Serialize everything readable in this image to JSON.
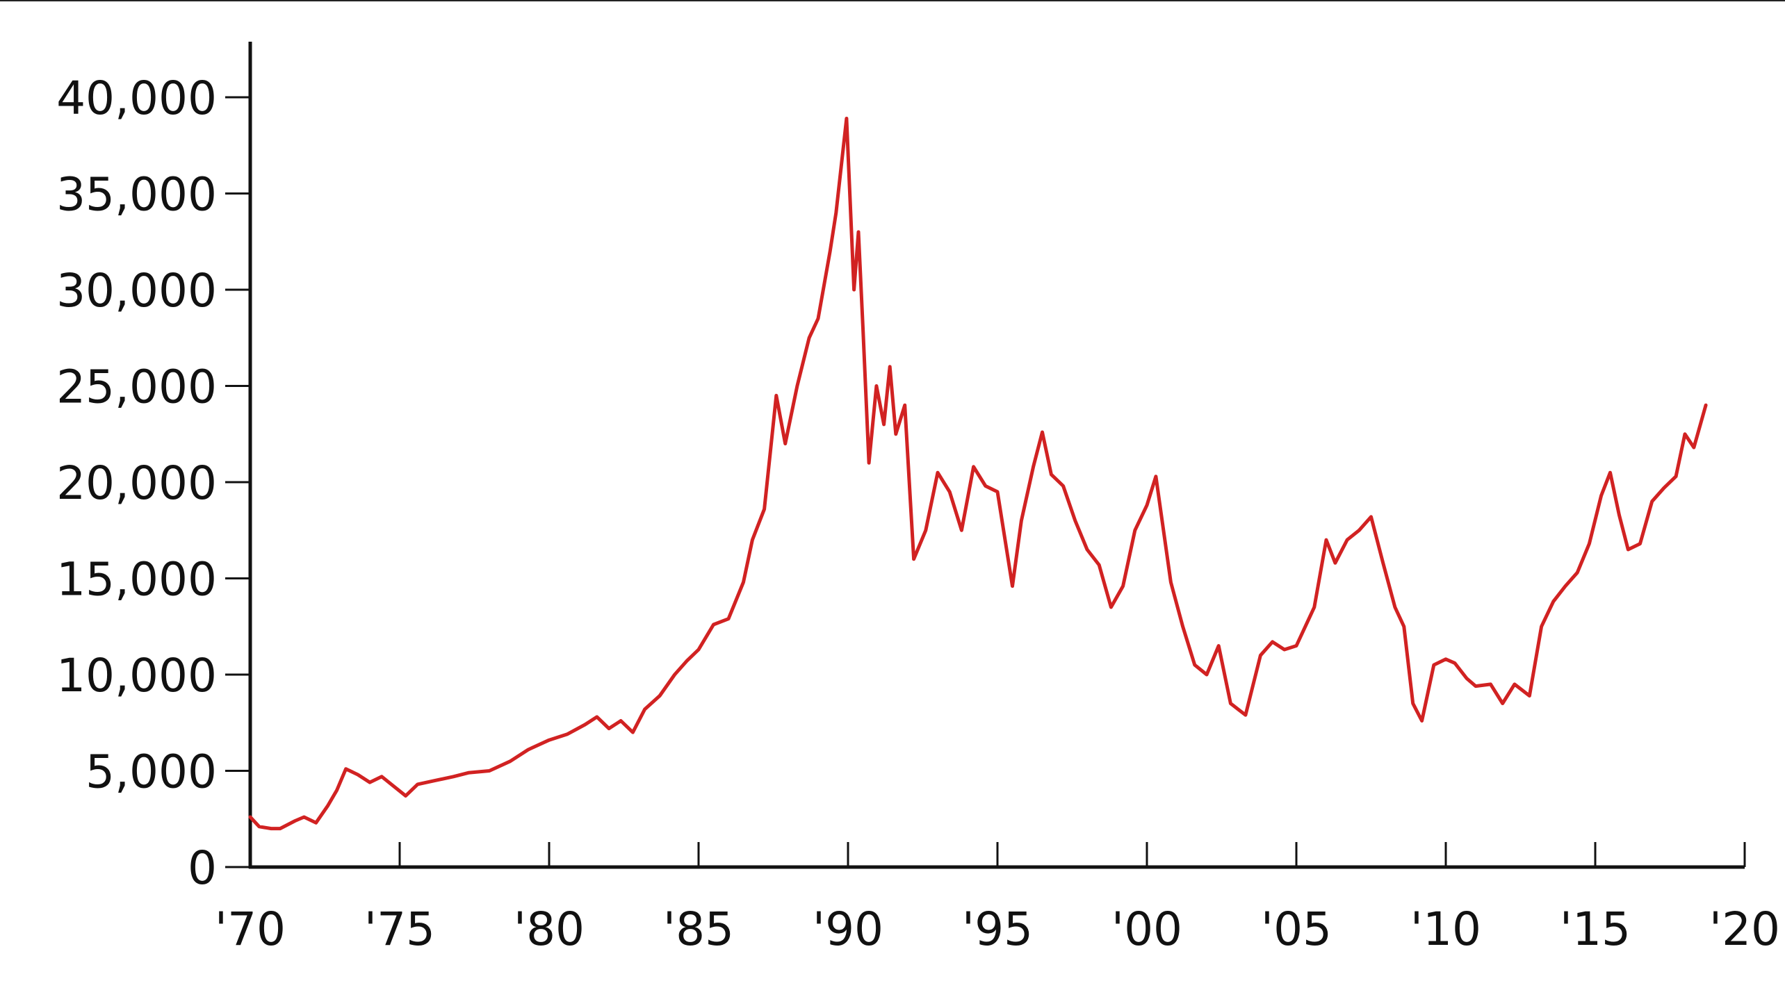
{
  "chart_data": {
    "type": "line",
    "title": "",
    "xlabel": "",
    "ylabel": "",
    "x_ticks": [
      "'70",
      "'75",
      "'80",
      "'85",
      "'90",
      "'95",
      "'00",
      "'05",
      "'10",
      "'15",
      "'20"
    ],
    "y_ticks": [
      "0",
      "5,000",
      "10,000",
      "15,000",
      "20,000",
      "25,000",
      "30,000",
      "35,000",
      "40,000"
    ],
    "xlim": [
      1970,
      2020
    ],
    "ylim": [
      0,
      40000
    ],
    "grid": false,
    "line_color": "#d12222",
    "axis_color": "#111111",
    "series": [
      {
        "x": [
          1970.0,
          1970.3,
          1970.7,
          1971.0,
          1971.5,
          1971.8,
          1972.2,
          1972.6,
          1972.9,
          1973.2,
          1973.6,
          1974.0,
          1974.4,
          1974.8,
          1975.2,
          1975.6,
          1976.2,
          1976.8,
          1977.3,
          1978.0,
          1978.7,
          1979.3,
          1980.0,
          1980.6,
          1981.2,
          1981.6,
          1982.0,
          1982.4,
          1982.8,
          1983.2,
          1983.7,
          1984.2,
          1984.6,
          1985.0,
          1985.5,
          1986.0,
          1986.5,
          1986.8,
          1987.2,
          1987.6,
          1987.9,
          1988.3,
          1988.7,
          1989.0,
          1989.4,
          1989.6,
          1989.95,
          1990.2,
          1990.35,
          1990.5,
          1990.7,
          1990.95,
          1991.2,
          1991.4,
          1991.6,
          1991.9,
          1992.2,
          1992.6,
          1993.0,
          1993.4,
          1993.8,
          1994.2,
          1994.6,
          1995.0,
          1995.5,
          1995.8,
          1996.2,
          1996.5,
          1996.8,
          1997.2,
          1997.6,
          1998.0,
          1998.4,
          1998.8,
          1999.2,
          1999.6,
          2000.0,
          2000.3,
          2000.8,
          2001.2,
          2001.6,
          2002.0,
          2002.4,
          2002.8,
          2003.3,
          2003.8,
          2004.2,
          2004.6,
          2005.0,
          2005.6,
          2006.0,
          2006.3,
          2006.7,
          2007.1,
          2007.5,
          2007.9,
          2008.3,
          2008.6,
          2008.9,
          2009.2,
          2009.6,
          2010.0,
          2010.3,
          2010.7,
          2011.0,
          2011.5,
          2011.9,
          2012.3,
          2012.8,
          2013.2,
          2013.6,
          2014.0,
          2014.4,
          2014.8,
          2015.2,
          2015.5,
          2015.8,
          2016.1,
          2016.5,
          2016.9,
          2017.3,
          2017.7,
          2018.0,
          2018.3,
          2018.7
        ],
        "y": [
          2600,
          2100,
          2000,
          2000,
          2400,
          2600,
          2300,
          3200,
          4000,
          5100,
          4800,
          4400,
          4700,
          4200,
          3700,
          4300,
          4500,
          4700,
          4900,
          5000,
          5500,
          6100,
          6600,
          6900,
          7400,
          7800,
          7200,
          7600,
          7000,
          8200,
          8900,
          10000,
          10700,
          11300,
          12600,
          12900,
          14800,
          17000,
          18600,
          24500,
          22000,
          25000,
          27500,
          28500,
          32000,
          34000,
          38900,
          30000,
          33000,
          28000,
          21000,
          25000,
          23000,
          26000,
          22500,
          24000,
          16000,
          17500,
          20500,
          19500,
          17500,
          20800,
          19800,
          19500,
          14600,
          18000,
          20800,
          22600,
          20400,
          19800,
          18000,
          16500,
          15700,
          13500,
          14600,
          17500,
          18800,
          20300,
          14800,
          12500,
          10500,
          10000,
          11500,
          8500,
          7900,
          11000,
          11700,
          11300,
          11500,
          13500,
          17000,
          15800,
          17000,
          17500,
          18200,
          15800,
          13500,
          12500,
          8500,
          7600,
          10500,
          10800,
          10600,
          9800,
          9400,
          9500,
          8500,
          9500,
          8900,
          12500,
          13800,
          14600,
          15300,
          16800,
          19300,
          20500,
          18300,
          16500,
          16800,
          19000,
          19700,
          20300,
          22500,
          21800,
          24000
        ]
      }
    ]
  }
}
